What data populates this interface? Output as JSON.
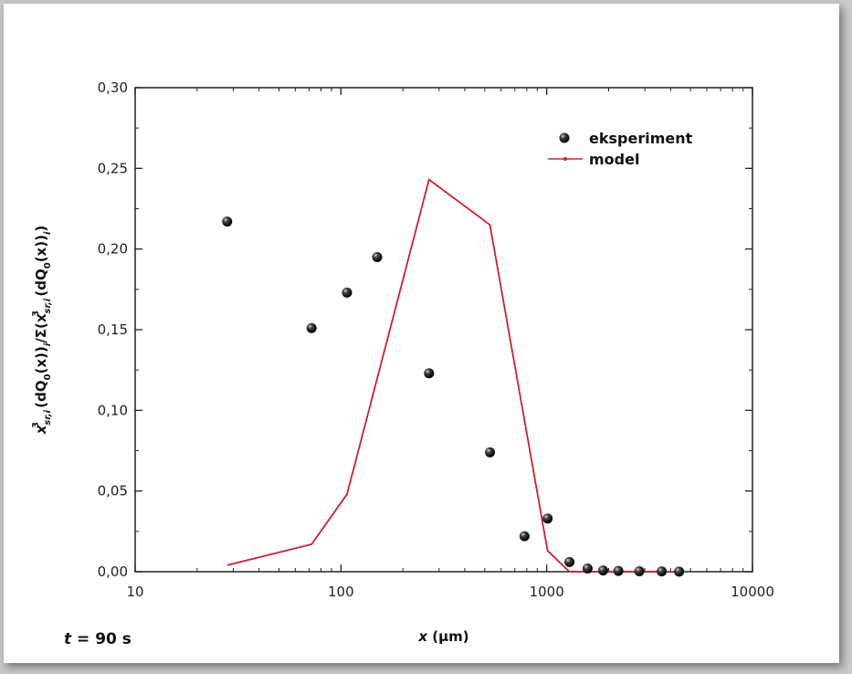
{
  "chart_data": {
    "type": "scatter",
    "xscale": "log",
    "xlim": [
      10,
      10000
    ],
    "ylim": [
      0,
      0.3
    ],
    "xticks": [
      10,
      100,
      1000,
      10000
    ],
    "xtick_labels": [
      "10",
      "100",
      "1000",
      "10000"
    ],
    "yticks": [
      0,
      0.05,
      0.1,
      0.15,
      0.2,
      0.25,
      0.3
    ],
    "ytick_labels": [
      "0,00",
      "0,05",
      "0,10",
      "0,15",
      "0,20",
      "0,25",
      "0,30"
    ],
    "xlabel": "x (μm)",
    "ylabel": "x_sr,i^3 (dQ0(x))_i / Σ(x_sr,i^3 (dQ0(x))_i)",
    "legend_position": "top-right",
    "grid": false,
    "annotation": "t = 90 s",
    "series": [
      {
        "name": "eksperiment",
        "type": "scatter",
        "color": "#111111",
        "points": [
          {
            "x": 28,
            "y": 0.217
          },
          {
            "x": 72,
            "y": 0.151
          },
          {
            "x": 107,
            "y": 0.173
          },
          {
            "x": 150,
            "y": 0.195
          },
          {
            "x": 268,
            "y": 0.123
          },
          {
            "x": 530,
            "y": 0.074
          },
          {
            "x": 780,
            "y": 0.022
          },
          {
            "x": 1010,
            "y": 0.033
          },
          {
            "x": 1290,
            "y": 0.006
          },
          {
            "x": 1580,
            "y": 0.002
          },
          {
            "x": 1880,
            "y": 0.0008
          },
          {
            "x": 2230,
            "y": 0.0005
          },
          {
            "x": 2820,
            "y": 0.0003
          },
          {
            "x": 3620,
            "y": 0.0002
          },
          {
            "x": 4400,
            "y": 0.0001
          }
        ]
      },
      {
        "name": "model",
        "type": "line",
        "color": "#d0202a",
        "points": [
          {
            "x": 28,
            "y": 0.004
          },
          {
            "x": 72,
            "y": 0.017
          },
          {
            "x": 107,
            "y": 0.048
          },
          {
            "x": 268,
            "y": 0.243
          },
          {
            "x": 530,
            "y": 0.215
          },
          {
            "x": 1010,
            "y": 0.013
          },
          {
            "x": 1290,
            "y": 0.0
          },
          {
            "x": 1580,
            "y": 0.0
          },
          {
            "x": 4400,
            "y": 0.0
          }
        ]
      }
    ]
  }
}
